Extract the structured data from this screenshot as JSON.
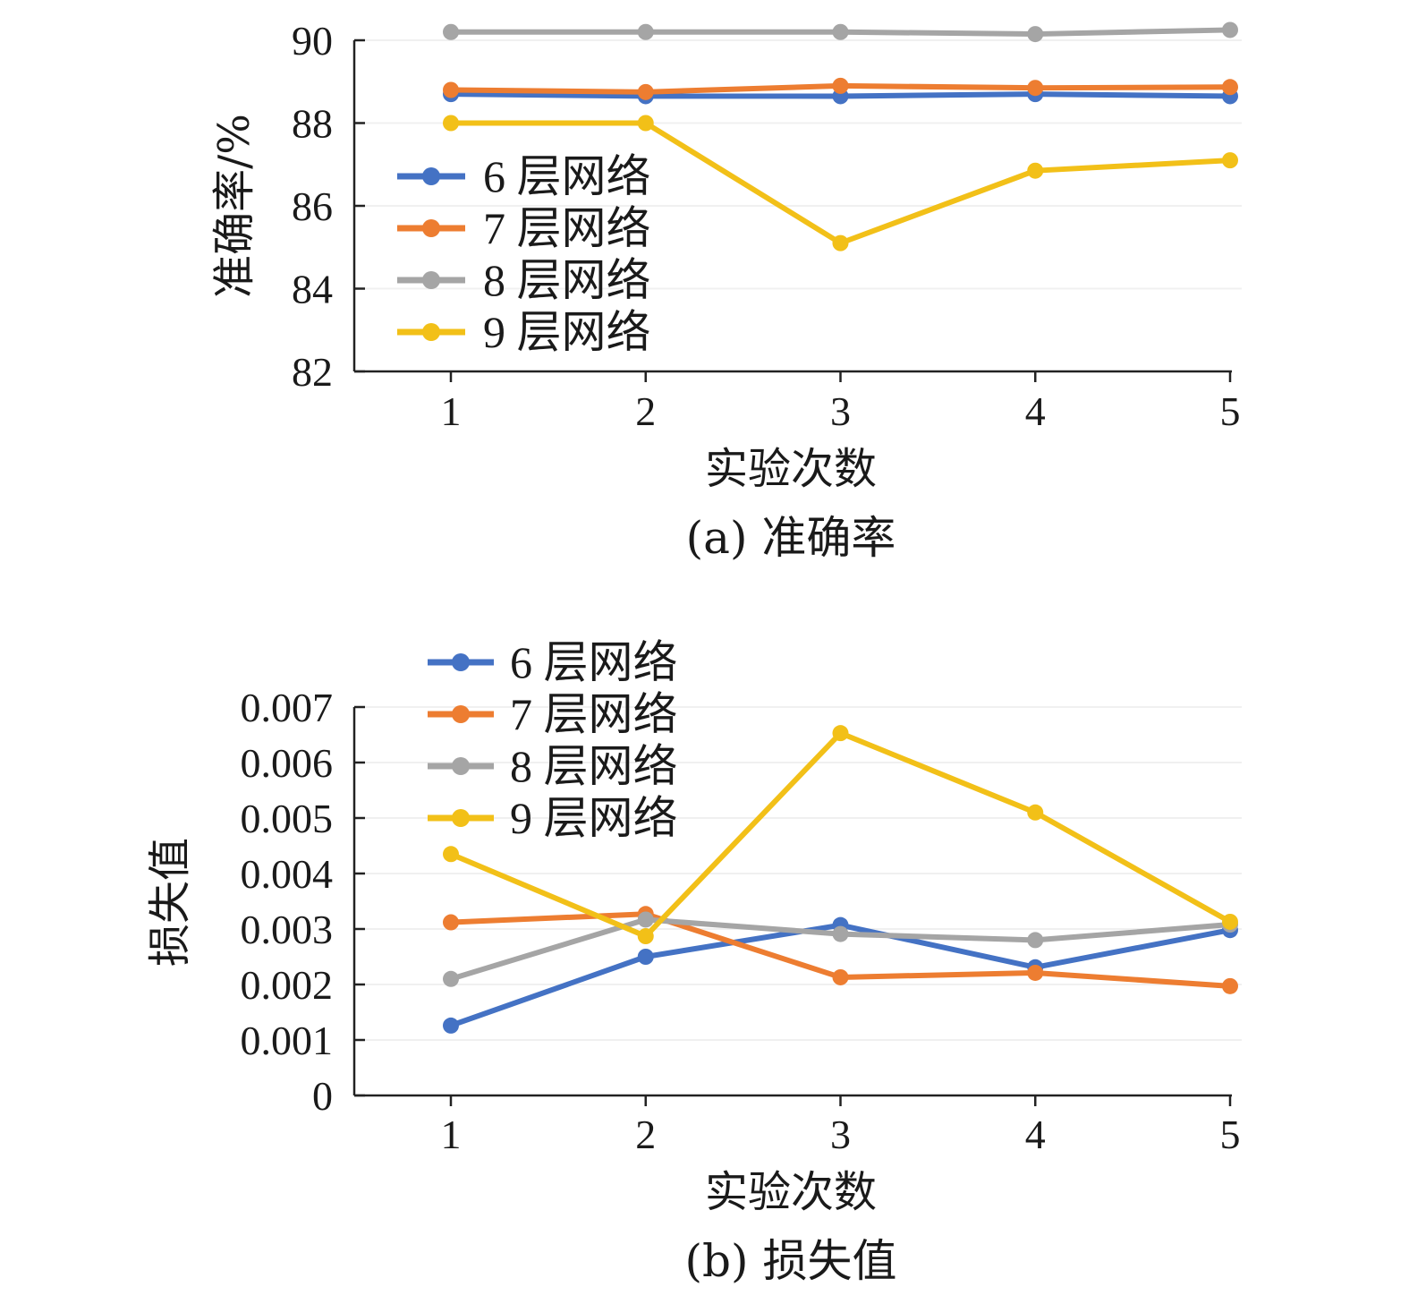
{
  "chart_data": [
    {
      "type": "line",
      "caption": "(a) 准确率",
      "xlabel": "实验次数",
      "ylabel": "准确率/%",
      "x": [
        1,
        2,
        3,
        4,
        5
      ],
      "xticks": [
        "1",
        "2",
        "3",
        "4",
        "5"
      ],
      "ylim": [
        82,
        90
      ],
      "yticks": [
        "82",
        "84",
        "86",
        "88",
        "90"
      ],
      "legend_position": "left-middle",
      "series": [
        {
          "name": "6 层网络",
          "color": "#4472c4",
          "values": [
            88.7,
            88.65,
            88.65,
            88.7,
            88.65
          ]
        },
        {
          "name": "7 层网络",
          "color": "#ed7d31",
          "values": [
            88.8,
            88.75,
            88.9,
            88.85,
            88.87
          ]
        },
        {
          "name": "8 层网络",
          "color": "#a5a5a5",
          "values": [
            90.2,
            90.2,
            90.2,
            90.15,
            90.25
          ]
        },
        {
          "name": "9 层网络",
          "color": "#f2c018",
          "values": [
            88.0,
            88.0,
            85.1,
            86.85,
            87.1
          ]
        }
      ]
    },
    {
      "type": "line",
      "caption": "(b) 损失值",
      "xlabel": "实验次数",
      "ylabel": "损失值",
      "x": [
        1,
        2,
        3,
        4,
        5
      ],
      "xticks": [
        "1",
        "2",
        "3",
        "4",
        "5"
      ],
      "ylim": [
        0,
        0.007
      ],
      "yticks": [
        "0",
        "0.001",
        "0.002",
        "0.003",
        "0.004",
        "0.005",
        "0.006",
        "0.007"
      ],
      "legend_position": "top-left",
      "series": [
        {
          "name": "6 层网络",
          "color": "#4472c4",
          "values": [
            0.00126,
            0.0025,
            0.00307,
            0.00231,
            0.00298
          ]
        },
        {
          "name": "7 层网络",
          "color": "#ed7d31",
          "values": [
            0.00312,
            0.00327,
            0.00213,
            0.00221,
            0.00197
          ]
        },
        {
          "name": "8 层网络",
          "color": "#a5a5a5",
          "values": [
            0.0021,
            0.00317,
            0.00291,
            0.0028,
            0.00308
          ]
        },
        {
          "name": "9 层网络",
          "color": "#f2c018",
          "values": [
            0.00435,
            0.00287,
            0.00653,
            0.0051,
            0.00313
          ]
        }
      ]
    }
  ]
}
